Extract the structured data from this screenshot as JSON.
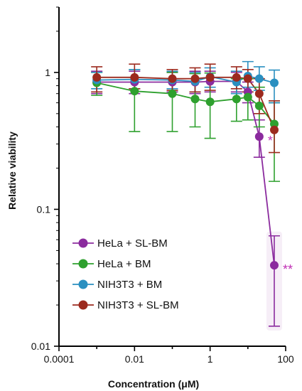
{
  "chart_data": {
    "type": "scatter",
    "title": "",
    "xlabel": "Concentration (μM)",
    "ylabel": "Relative viability",
    "xscale": "log",
    "yscale": "log",
    "xlim": [
      0.0001,
      100
    ],
    "ylim": [
      0.01,
      3
    ],
    "xticks": [
      0.0001,
      0.01,
      1,
      100
    ],
    "xtick_labels": [
      "0.0001",
      "0.01",
      "1",
      "100"
    ],
    "yticks": [
      0.01,
      0.1,
      1
    ],
    "ytick_labels": [
      "0.01",
      "0.1",
      "1"
    ],
    "grid": false,
    "legend_position": "bottom-left",
    "series": [
      {
        "name": "HeLa + SL-BM",
        "color": "#8b2b9e",
        "x": [
          0.001,
          0.01,
          0.1,
          0.4,
          1,
          5,
          10,
          20,
          50
        ],
        "y": [
          0.85,
          0.85,
          0.85,
          0.85,
          0.86,
          0.86,
          0.72,
          0.34,
          0.039
        ],
        "err_low": [
          0.7,
          0.7,
          0.72,
          0.7,
          0.72,
          0.72,
          0.6,
          0.24,
          0.014
        ],
        "err_high": [
          1.02,
          1.02,
          1.0,
          1.02,
          1.02,
          1.0,
          0.85,
          0.45,
          0.064
        ]
      },
      {
        "name": "HeLa + BM",
        "color": "#2ea02e",
        "x": [
          0.001,
          0.01,
          0.1,
          0.4,
          1,
          5,
          10,
          20,
          50
        ],
        "y": [
          0.84,
          0.73,
          0.7,
          0.64,
          0.61,
          0.64,
          0.66,
          0.57,
          0.42
        ],
        "err_low": [
          0.68,
          0.37,
          0.37,
          0.4,
          0.33,
          0.44,
          0.45,
          0.4,
          0.16
        ],
        "err_high": [
          1.0,
          1.05,
          1.0,
          0.98,
          0.99,
          0.9,
          0.9,
          0.78,
          0.6
        ]
      },
      {
        "name": "NIH3T3 + BM",
        "color": "#2a8fc0",
        "x": [
          0.001,
          0.01,
          0.1,
          0.4,
          1,
          5,
          10,
          20,
          50
        ],
        "y": [
          0.88,
          0.89,
          0.88,
          0.86,
          0.93,
          0.85,
          0.94,
          0.9,
          0.84
        ],
        "err_low": [
          0.76,
          0.76,
          0.76,
          0.72,
          0.78,
          0.7,
          0.78,
          0.74,
          0.6
        ],
        "err_high": [
          1.0,
          1.05,
          1.02,
          1.0,
          1.08,
          1.02,
          1.2,
          1.1,
          1.04
        ]
      },
      {
        "name": "NIH3T3 + SL-BM",
        "color": "#9c2a1e",
        "x": [
          0.001,
          0.01,
          0.1,
          0.4,
          1,
          5,
          10,
          20,
          50
        ],
        "y": [
          0.92,
          0.92,
          0.9,
          0.9,
          0.92,
          0.92,
          0.9,
          0.7,
          0.38
        ],
        "err_low": [
          0.72,
          0.76,
          0.74,
          0.72,
          0.74,
          0.76,
          0.72,
          0.5,
          0.26
        ],
        "err_high": [
          1.1,
          1.15,
          1.05,
          1.08,
          1.15,
          1.1,
          1.05,
          0.9,
          0.62
        ]
      }
    ],
    "annotations": [
      {
        "text": "*",
        "x": 20,
        "y": 0.34,
        "color": "#c02fb5"
      },
      {
        "text": "**",
        "x": 50,
        "y": 0.039,
        "color": "#c02fb5"
      }
    ]
  }
}
